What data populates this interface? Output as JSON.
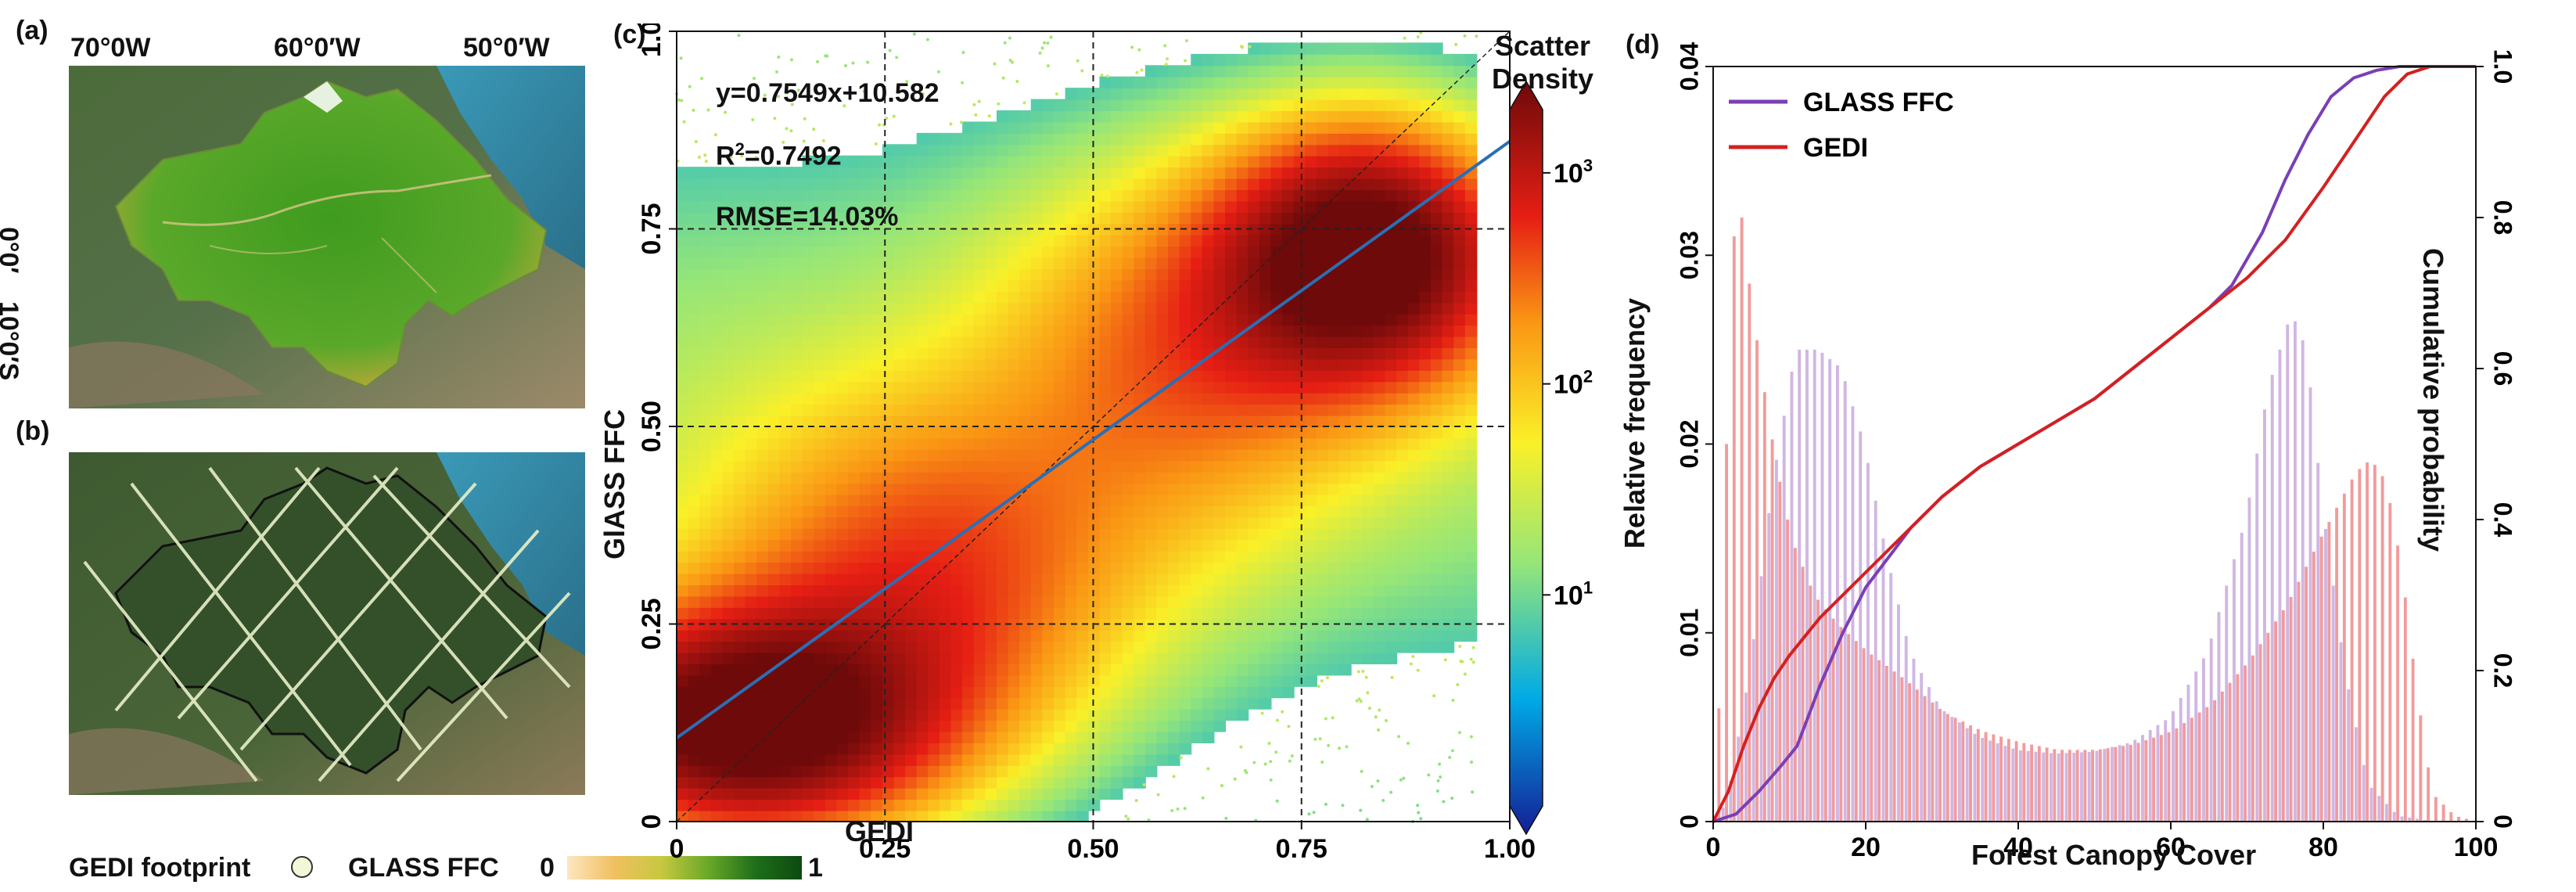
{
  "panels": {
    "a": {
      "label": "(a)",
      "lon_ticks": [
        "70°0W",
        "60°0′W",
        "50°0′W"
      ],
      "lat_ticks": [
        "0°0′",
        "10°0′S"
      ]
    },
    "b": {
      "label": "(b)"
    },
    "c": {
      "label": "(c)"
    },
    "d": {
      "label": "(d)"
    }
  },
  "legend_bottom": {
    "gedi_label": "GEDI footprint",
    "glass_label": "GLASS FFC",
    "ramp_min": "0",
    "ramp_max": "1"
  },
  "colors": {
    "glass_line": "#7b3fb5",
    "gedi_line": "#d42020",
    "fit_line": "#2a6fb5",
    "glass_bar": "#c9a9dd",
    "gedi_bar": "#f08a8a",
    "forest": "#3f8f22",
    "ocean": "#3a8ea8"
  },
  "chart_data": [
    {
      "type": "scatter",
      "panel": "c",
      "xlabel": "GEDI",
      "ylabel": "GlASS FFC",
      "xlim": [
        0,
        1
      ],
      "ylim": [
        0,
        1
      ],
      "xticks": [
        "0",
        "0.25",
        "0.50",
        "0.75",
        "1.00"
      ],
      "yticks": [
        "0",
        "0.25",
        "0.50",
        "0.75",
        "1.00"
      ],
      "equation": "y=0.7549x+10.582",
      "r2_prefix": "R",
      "r2_sup": "2",
      "r2_value": "=0.7492",
      "rmse": "RMSE=14.03%",
      "fit": {
        "slope": 0.7549,
        "intercept": 0.10582
      },
      "grid_dashed": true,
      "colorbar": {
        "title_line1": "Scatter",
        "title_line2": "Density",
        "scale": "log",
        "tick_bases": [
          "10",
          "10",
          "10"
        ],
        "tick_exps": [
          "1",
          "2",
          "3"
        ],
        "tick_log_values": [
          1,
          2,
          3
        ],
        "range_log": [
          0,
          3.3
        ]
      },
      "density_clusters": [
        {
          "x": 0.08,
          "y": 0.12,
          "sx": 0.16,
          "sy": 0.1,
          "w": 1.0
        },
        {
          "x": 0.83,
          "y": 0.72,
          "sx": 0.12,
          "sy": 0.11,
          "w": 0.95
        },
        {
          "x": 0.3,
          "y": 0.3,
          "sx": 0.18,
          "sy": 0.16,
          "w": 0.45
        },
        {
          "x": 0.62,
          "y": 0.6,
          "sx": 0.16,
          "sy": 0.16,
          "w": 0.35
        }
      ]
    },
    {
      "type": "bar",
      "panel": "d",
      "xlabel": "Forest Canopy Cover",
      "ylabel": "Relative frequency",
      "y2label": "Cumulative probability",
      "xlim": [
        0,
        100
      ],
      "ylim": [
        0,
        0.04
      ],
      "y2lim": [
        0,
        1.0
      ],
      "xticks": [
        "0",
        "20",
        "40",
        "60",
        "80",
        "100"
      ],
      "yticks": [
        "0",
        "0.01",
        "0.02",
        "0.03",
        "0.04"
      ],
      "y2ticks": [
        "0",
        "0.2",
        "0.4",
        "0.6",
        "0.8",
        "1.0"
      ],
      "legend": [
        {
          "name": "GLASS FFC"
        },
        {
          "name": "GEDI"
        }
      ],
      "series": [
        {
          "name": "GLASS FFC",
          "kind": "histogram",
          "anchors_x": [
            0,
            2,
            5,
            8,
            11,
            14,
            17,
            20,
            23,
            26,
            30,
            35,
            40,
            45,
            50,
            55,
            60,
            65,
            70,
            73,
            76,
            78,
            80,
            83,
            86,
            90,
            95,
            100
          ],
          "anchors_y": [
            0,
            0.001,
            0.008,
            0.018,
            0.025,
            0.025,
            0.024,
            0.02,
            0.014,
            0.009,
            0.006,
            0.0045,
            0.0038,
            0.0036,
            0.0037,
            0.0042,
            0.0055,
            0.009,
            0.016,
            0.023,
            0.027,
            0.025,
            0.017,
            0.008,
            0.002,
            0.0003,
            0,
            0
          ]
        },
        {
          "name": "GEDI",
          "kind": "histogram",
          "anchors_x": [
            0,
            1,
            2,
            3,
            4,
            6,
            8,
            10,
            13,
            16,
            20,
            25,
            30,
            35,
            40,
            45,
            50,
            55,
            60,
            65,
            70,
            75,
            80,
            84,
            86,
            88,
            90,
            92,
            94,
            97,
            100
          ],
          "anchors_y": [
            0,
            0.012,
            0.028,
            0.034,
            0.03,
            0.024,
            0.019,
            0.015,
            0.012,
            0.0105,
            0.009,
            0.0075,
            0.0058,
            0.0048,
            0.0042,
            0.0038,
            0.0038,
            0.0041,
            0.0048,
            0.0062,
            0.0085,
            0.0115,
            0.0155,
            0.0185,
            0.0192,
            0.018,
            0.0135,
            0.007,
            0.0015,
            0.0003,
            0
          ]
        },
        {
          "name": "GLASS FFC cumulative",
          "kind": "line",
          "x": [
            0,
            3,
            6,
            9,
            11,
            14,
            17,
            20,
            23,
            26,
            30,
            35,
            40,
            45,
            50,
            55,
            60,
            65,
            68,
            72,
            75,
            78,
            81,
            84,
            87,
            90,
            95,
            100
          ],
          "y": [
            0,
            0.01,
            0.04,
            0.075,
            0.1,
            0.18,
            0.25,
            0.31,
            0.35,
            0.39,
            0.43,
            0.47,
            0.5,
            0.53,
            0.56,
            0.6,
            0.64,
            0.68,
            0.71,
            0.78,
            0.85,
            0.91,
            0.96,
            0.985,
            0.995,
            1.0,
            1.0,
            1.0
          ]
        },
        {
          "name": "GEDI cumulative",
          "kind": "line",
          "x": [
            0,
            2,
            4,
            6,
            8,
            10,
            14,
            18,
            22,
            26,
            30,
            35,
            40,
            45,
            50,
            55,
            60,
            65,
            70,
            75,
            80,
            84,
            88,
            91,
            94,
            96,
            100
          ],
          "y": [
            0,
            0.04,
            0.1,
            0.15,
            0.19,
            0.22,
            0.27,
            0.31,
            0.35,
            0.39,
            0.43,
            0.47,
            0.5,
            0.53,
            0.56,
            0.6,
            0.64,
            0.68,
            0.72,
            0.77,
            0.84,
            0.9,
            0.96,
            0.99,
            1.0,
            1.0,
            1.0
          ]
        }
      ]
    }
  ]
}
